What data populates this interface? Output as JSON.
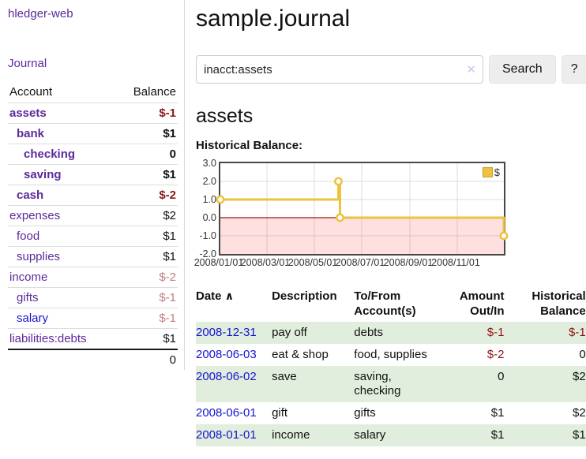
{
  "colors": {
    "purple": "#5b2a9b",
    "blue": "#1414d2",
    "neg_strong": "#8d1616",
    "neg_light": "#c27d7d",
    "row_green": "#e2eedd",
    "chart_line": "#edc240",
    "zero_line": "#a31212"
  },
  "icons": {
    "clear": "✕",
    "sort_asc": "∧"
  },
  "sidebar": {
    "app_title": "hledger-web",
    "journal_link": "Journal",
    "accounts_header": {
      "account": "Account",
      "balance": "Balance"
    },
    "accounts": [
      {
        "name": "assets",
        "depth": 1,
        "bold": true,
        "balance": "$-1",
        "balance_class": "neg-strong"
      },
      {
        "name": "bank",
        "depth": 2,
        "bold": true,
        "balance": "$1",
        "balance_class": ""
      },
      {
        "name": "checking",
        "depth": 3,
        "bold": true,
        "balance": "0",
        "balance_class": ""
      },
      {
        "name": "saving",
        "depth": 3,
        "bold": true,
        "balance": "$1",
        "balance_class": ""
      },
      {
        "name": "cash",
        "depth": 2,
        "bold": true,
        "balance": "$-2",
        "balance_class": "neg-strong"
      },
      {
        "name": "expenses",
        "depth": 1,
        "bold": false,
        "balance": "$2",
        "balance_class": ""
      },
      {
        "name": "food",
        "depth": 2,
        "bold": false,
        "balance": "$1",
        "balance_class": ""
      },
      {
        "name": "supplies",
        "depth": 2,
        "bold": false,
        "balance": "$1",
        "balance_class": ""
      },
      {
        "name": "income",
        "depth": 1,
        "bold": false,
        "balance": "$-2",
        "balance_class": "neg-light"
      },
      {
        "name": "gifts",
        "depth": 2,
        "bold": false,
        "balance": "$-1",
        "balance_class": "neg-light"
      },
      {
        "name": "salary",
        "depth": 2,
        "bold": false,
        "balance": "$-1",
        "balance_class": "neg-light",
        "link_class": "unvisited"
      },
      {
        "name": "liabilities:debts",
        "depth": 1,
        "bold": false,
        "balance": "$1",
        "balance_class": ""
      }
    ],
    "total": "0"
  },
  "main": {
    "title": "sample.journal",
    "search": {
      "value": "inacct:assets",
      "button_label": "Search",
      "help_label": "?"
    },
    "account_heading": "assets"
  },
  "chart_data": {
    "type": "line",
    "title": "Historical Balance:",
    "legend_label": "$",
    "legend_position": "top-right",
    "step": true,
    "grid": true,
    "xlim": [
      "2008-01-01",
      "2008-12-31"
    ],
    "ylim": [
      -2,
      3
    ],
    "x_ticks": [
      "2008/01/01",
      "2008/03/01",
      "2008/05/01",
      "2008/07/01",
      "2008/09/01",
      "2008/11/01"
    ],
    "y_tick_labels": [
      "3.0",
      "2.0",
      "1.0",
      "0.0",
      "-1.0",
      "-2.0"
    ],
    "negative_region": true,
    "series": [
      {
        "name": "$",
        "color": "#edc240",
        "points": [
          [
            "2008-01-01",
            1
          ],
          [
            "2008-06-01",
            2
          ],
          [
            "2008-06-03",
            0
          ],
          [
            "2008-12-31",
            -1
          ]
        ]
      }
    ]
  },
  "register": {
    "headers": {
      "date": "Date",
      "description": "Description",
      "to_from": "To/From Account(s)",
      "amount": "Amount Out/In",
      "balance": "Historical Balance"
    },
    "rows": [
      {
        "date": "2008-12-31",
        "description": "pay off",
        "to_from": "debts",
        "amount": "$-1",
        "balance": "$-1"
      },
      {
        "date": "2008-06-03",
        "description": "eat & shop",
        "to_from": "food, supplies",
        "amount": "$-2",
        "balance": "0"
      },
      {
        "date": "2008-06-02",
        "description": "save",
        "to_from": "saving, checking",
        "amount": "0",
        "balance": "$2"
      },
      {
        "date": "2008-06-01",
        "description": "gift",
        "to_from": "gifts",
        "amount": "$1",
        "balance": "$2"
      },
      {
        "date": "2008-01-01",
        "description": "income",
        "to_from": "salary",
        "amount": "$1",
        "balance": "$1"
      }
    ]
  }
}
